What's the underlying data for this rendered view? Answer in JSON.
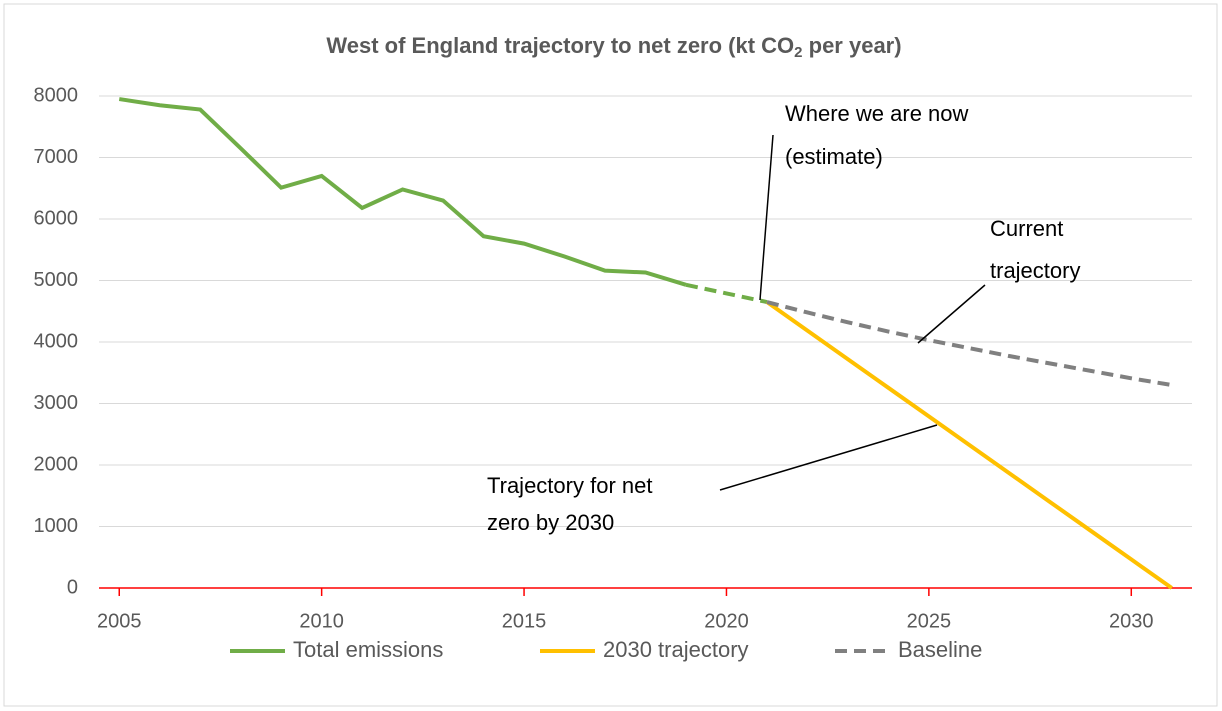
{
  "chart_data": {
    "type": "line",
    "title": [
      "West of England trajectory to net zero (kt CO",
      "2",
      " per year)"
    ],
    "x": [
      2005,
      2006,
      2007,
      2008,
      2009,
      2010,
      2011,
      2012,
      2013,
      2014,
      2015,
      2016,
      2017,
      2018,
      2019,
      2020,
      2021,
      2022,
      2023,
      2024,
      2025,
      2026,
      2027,
      2028,
      2029,
      2030,
      2031
    ],
    "xlim": [
      2004.5,
      2031.5
    ],
    "xticks": [
      2005,
      2010,
      2015,
      2020,
      2025,
      2030
    ],
    "ylim": [
      0,
      8000
    ],
    "yticks": [
      0,
      1000,
      2000,
      3000,
      4000,
      5000,
      6000,
      7000,
      8000
    ],
    "grid": true,
    "legend": "bottom",
    "series": [
      {
        "name": "Total emissions",
        "color": "#70ad47",
        "dash_from": 2019,
        "values": [
          7950,
          7850,
          7780,
          7150,
          6510,
          6700,
          6180,
          6480,
          6300,
          5720,
          5600,
          5390,
          5160,
          5130,
          4930,
          4790,
          4650,
          null,
          null,
          null,
          null,
          null,
          null,
          null,
          null,
          null,
          null
        ]
      },
      {
        "name": "2030 trajectory",
        "color": "#ffc000",
        "values": [
          null,
          null,
          null,
          null,
          null,
          null,
          null,
          null,
          null,
          null,
          null,
          null,
          null,
          null,
          null,
          null,
          4650,
          4185,
          3720,
          3255,
          2790,
          2325,
          1860,
          1395,
          930,
          465,
          0
        ]
      },
      {
        "name": "Baseline",
        "color": "#808080",
        "dashed": true,
        "values": [
          null,
          null,
          null,
          null,
          null,
          null,
          null,
          null,
          null,
          null,
          null,
          null,
          null,
          null,
          null,
          null,
          4650,
          4480,
          4320,
          4170,
          4030,
          3900,
          3770,
          3650,
          3530,
          3410,
          3300
        ]
      }
    ],
    "annotations": [
      {
        "text": [
          "Where we are now",
          "(estimate)"
        ]
      },
      {
        "text": [
          "Current",
          "trajectory"
        ]
      },
      {
        "text": [
          "Trajectory for net",
          "zero by 2030"
        ]
      }
    ]
  }
}
